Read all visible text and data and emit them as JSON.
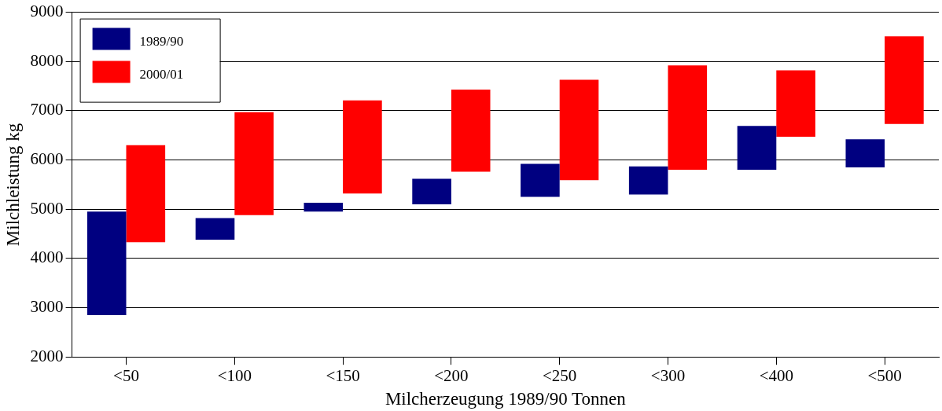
{
  "chart_data": {
    "type": "bar",
    "xlabel": "Milcherzeugung 1989/90 Tonnen",
    "ylabel": "Milchleistung kg",
    "categories": [
      "<50",
      "<100",
      "<150",
      "<200",
      "<250",
      "<300",
      "<400",
      "<500"
    ],
    "series": [
      {
        "name": "1989/90",
        "color": "#000080",
        "base": [
          2850,
          4380,
          4950,
          5100,
          5250,
          5300,
          5800,
          5850
        ],
        "values": [
          2100,
          440,
          180,
          520,
          670,
          570,
          890,
          570
        ]
      },
      {
        "name": "2000/01",
        "color": "#ff0000",
        "base": [
          4330,
          4880,
          5320,
          5760,
          5590,
          5800,
          6470,
          6730
        ],
        "values": [
          1970,
          2090,
          1890,
          1670,
          2040,
          2120,
          1350,
          1780
        ]
      }
    ],
    "ylim": [
      2000,
      9000
    ],
    "yticks": [
      2000,
      3000,
      4000,
      5000,
      6000,
      7000,
      8000,
      9000
    ],
    "grid": "y",
    "legend": "top left"
  }
}
